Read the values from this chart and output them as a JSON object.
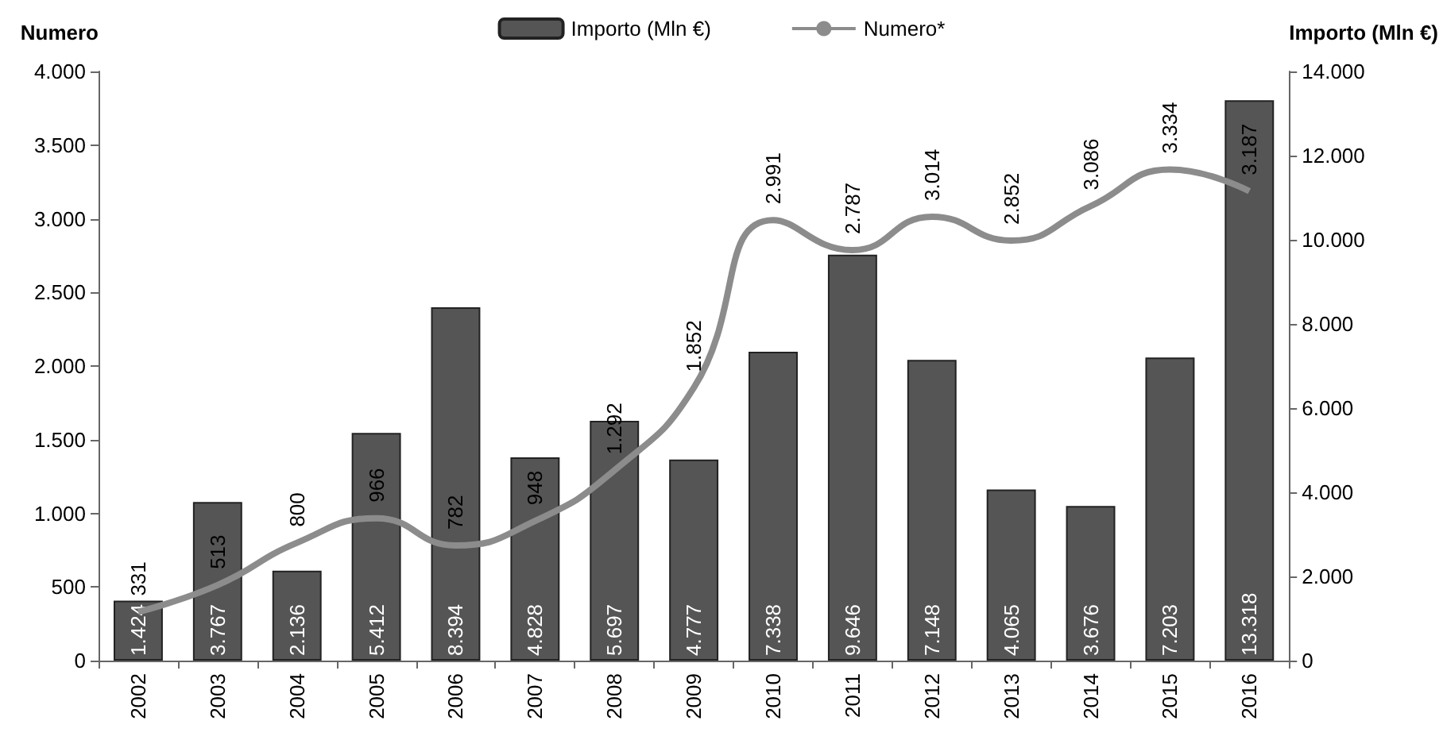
{
  "chart_data": {
    "type": "bar",
    "categories": [
      "2002",
      "2003",
      "2004",
      "2005",
      "2006",
      "2007",
      "2008",
      "2009",
      "2010",
      "2011",
      "2012",
      "2013",
      "2014",
      "2015",
      "2016"
    ],
    "series": [
      {
        "name": "Importo (Mln €)",
        "axis": "y2",
        "color": "#555555",
        "values": [
          1424,
          3767,
          2136,
          5412,
          8394,
          4828,
          5697,
          4777,
          7338,
          9646,
          7148,
          4065,
          3676,
          7203,
          13318
        ],
        "value_labels": [
          "1.424",
          "3.767",
          "2.136",
          "5.412",
          "8.394",
          "4.828",
          "5.697",
          "4.777",
          "7.338",
          "9.646",
          "7.148",
          "4.065",
          "3.676",
          "7.203",
          "13.318"
        ]
      },
      {
        "name": "Numero*",
        "type": "line",
        "color": "#8c8c8c",
        "values": [
          331,
          513,
          800,
          966,
          782,
          948,
          1292,
          1852,
          2991,
          2787,
          3014,
          2852,
          3086,
          3334,
          3187
        ],
        "value_labels": [
          "331",
          "513",
          "800",
          "966",
          "782",
          "948",
          "1.292",
          "1.852",
          "2.991",
          "2.787",
          "3.014",
          "2.852",
          "3.086",
          "3.334",
          "3.187"
        ]
      }
    ],
    "ylabel": "Numero",
    "y2label": "Importo (Mln €)",
    "ylim": [
      0,
      4000
    ],
    "yticks": [
      0,
      500,
      {
        "value": 1000,
        "label": "1.000"
      },
      {
        "value": 1500,
        "label": "1.500"
      },
      {
        "value": 2000,
        "label": "2.000"
      },
      {
        "value": 2500,
        "label": "2.500"
      },
      {
        "value": 3000,
        "label": "3.000"
      },
      {
        "value": 3500,
        "label": "3.500"
      },
      {
        "value": 4000,
        "label": "4.000"
      }
    ],
    "y2lim": [
      0,
      14000
    ],
    "y2ticks": [
      0,
      {
        "value": 2000,
        "label": "2.000"
      },
      {
        "value": 4000,
        "label": "4.000"
      },
      {
        "value": 6000,
        "label": "6.000"
      },
      {
        "value": 8000,
        "label": "8.000"
      },
      {
        "value": 10000,
        "label": "10.000"
      },
      {
        "value": 12000,
        "label": "12.000"
      },
      {
        "value": 14000,
        "label": "14.000"
      }
    ],
    "legend": "top",
    "marker": "none"
  }
}
